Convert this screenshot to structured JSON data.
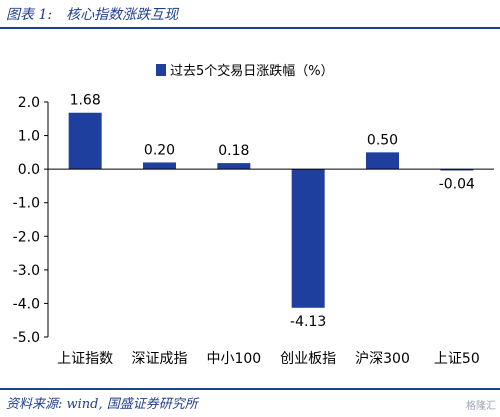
{
  "figure": {
    "label": "图表 1:",
    "title": "核心指数涨跌互现",
    "source": "资料来源: wind, 国盛证券研究所",
    "watermark": "格隆汇"
  },
  "chart_data": {
    "type": "bar",
    "categories": [
      "上证指数",
      "深证成指",
      "中小100",
      "创业板指",
      "沪深300",
      "上证50"
    ],
    "series": [
      {
        "name": "过去5个交易日涨跌幅（%）",
        "values": [
          1.68,
          0.2,
          0.18,
          -4.13,
          0.5,
          -0.04
        ],
        "color": "#1f3f9f"
      }
    ],
    "data_labels": [
      "1.68",
      "0.20",
      "0.18",
      "-4.13",
      "0.50",
      "-0.04"
    ],
    "ylim": [
      -5.0,
      2.0
    ],
    "yticks": [
      2.0,
      1.0,
      0.0,
      -1.0,
      -2.0,
      -3.0,
      -4.0,
      -5.0
    ],
    "ytick_labels": [
      "2.0",
      "1.0",
      "0.0",
      "-1.0",
      "-2.0",
      "-3.0",
      "-4.0",
      "-5.0"
    ],
    "legend_position": "top-center",
    "grid": false
  }
}
